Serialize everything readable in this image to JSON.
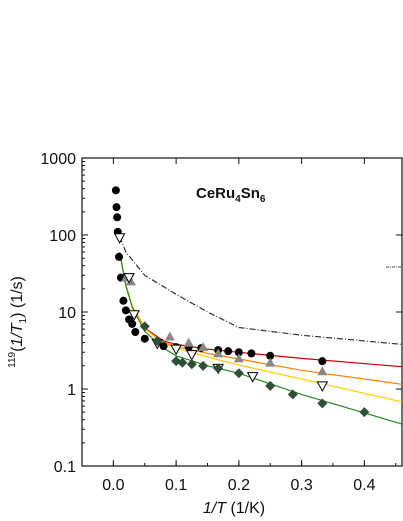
{
  "chart_data": {
    "type": "scatter",
    "title_main": "CeRu",
    "title_sub1": "4",
    "title_mid": "Sn",
    "title_sub2": "6",
    "x_label_var": "1/T",
    "x_label_unit": " (1/K)",
    "y_label_pre": "119",
    "y_label_var": "1/T",
    "y_label_sub": "1",
    "y_label_unit": ") (1/s)",
    "x_ticks": [
      "0.0",
      "0.1",
      "0.2",
      "0.3",
      "0.4"
    ],
    "x_tick_values": [
      0.0,
      0.1,
      0.2,
      0.3,
      0.4
    ],
    "y_ticks": [
      "0.1",
      "1",
      "10",
      "100",
      "1000"
    ],
    "y_tick_values": [
      0.1,
      1,
      10,
      100,
      1000
    ],
    "xlim": [
      -0.05,
      0.46
    ],
    "ylim": [
      0.1,
      1000
    ],
    "yscale": "log",
    "legend": "none",
    "series": [
      {
        "marker": "circle",
        "color": "#000000",
        "x": [
          0.004,
          0.005,
          0.006,
          0.007,
          0.009,
          0.012,
          0.016,
          0.02,
          0.025,
          0.03,
          0.035,
          0.05,
          0.08,
          0.1,
          0.12,
          0.14,
          0.167,
          0.183,
          0.2,
          0.22,
          0.25,
          0.333
        ],
        "y": [
          380,
          230,
          170,
          110,
          52,
          28,
          14,
          10.5,
          8,
          7,
          5.5,
          4.5,
          3.6,
          3.5,
          3.5,
          3.4,
          3.2,
          3.1,
          3.0,
          2.9,
          2.7,
          2.3
        ]
      },
      {
        "marker": "triangle-up",
        "color": "#888888",
        "x": [
          0.02,
          0.028,
          0.09,
          0.12,
          0.143,
          0.167,
          0.2,
          0.25,
          0.333
        ],
        "y": [
          28,
          25,
          4.8,
          4.0,
          3.5,
          2.9,
          2.5,
          2.2,
          1.7
        ]
      },
      {
        "marker": "triangle-down-open",
        "color": "#000000",
        "x": [
          0.01,
          0.025,
          0.033,
          0.07,
          0.1,
          0.125,
          0.167,
          0.222,
          0.333
        ],
        "y": [
          92,
          28,
          9.2,
          3.9,
          3.3,
          2.8,
          1.85,
          1.45,
          1.1
        ]
      },
      {
        "marker": "diamond",
        "color": "#2f4f3a",
        "x": [
          0.05,
          0.07,
          0.1,
          0.11,
          0.125,
          0.143,
          0.167,
          0.2,
          0.25,
          0.286,
          0.333,
          0.4
        ],
        "y": [
          6.5,
          4.2,
          2.3,
          2.2,
          2.1,
          2.0,
          1.85,
          1.6,
          1.1,
          0.85,
          0.65,
          0.5
        ]
      }
    ],
    "fit_lines": [
      {
        "color": "#cc0000",
        "style": "solid",
        "x": [
          0.01,
          0.02,
          0.03,
          0.05,
          0.08,
          0.1,
          0.15,
          0.2,
          0.3,
          0.46
        ],
        "y": [
          60,
          22,
          12,
          6.2,
          4.2,
          3.8,
          3.3,
          3.0,
          2.5,
          1.95
        ]
      },
      {
        "color": "#ff7f00",
        "style": "solid",
        "x": [
          0.01,
          0.02,
          0.03,
          0.05,
          0.08,
          0.1,
          0.15,
          0.2,
          0.3,
          0.46
        ],
        "y": [
          60,
          22,
          12,
          6.1,
          4.0,
          3.55,
          2.9,
          2.45,
          1.75,
          1.15
        ]
      },
      {
        "color": "#ffcc00",
        "style": "solid",
        "x": [
          0.01,
          0.02,
          0.03,
          0.05,
          0.08,
          0.1,
          0.15,
          0.2,
          0.3,
          0.46
        ],
        "y": [
          60,
          22,
          12,
          6.0,
          3.9,
          3.4,
          2.6,
          2.05,
          1.35,
          0.68
        ]
      },
      {
        "color": "#228b22",
        "style": "solid",
        "x": [
          0.01,
          0.02,
          0.03,
          0.05,
          0.08,
          0.1,
          0.15,
          0.2,
          0.3,
          0.46
        ],
        "y": [
          60,
          22,
          11.5,
          5.6,
          3.4,
          2.7,
          2.0,
          1.6,
          0.85,
          0.35
        ]
      },
      {
        "color": "#333333",
        "style": "dashdot",
        "x": [
          0.01,
          0.02,
          0.05,
          0.1,
          0.15,
          0.2,
          0.3,
          0.46
        ],
        "y": [
          95,
          60,
          30,
          17,
          10,
          6.3,
          5.0,
          3.8
        ]
      }
    ]
  }
}
